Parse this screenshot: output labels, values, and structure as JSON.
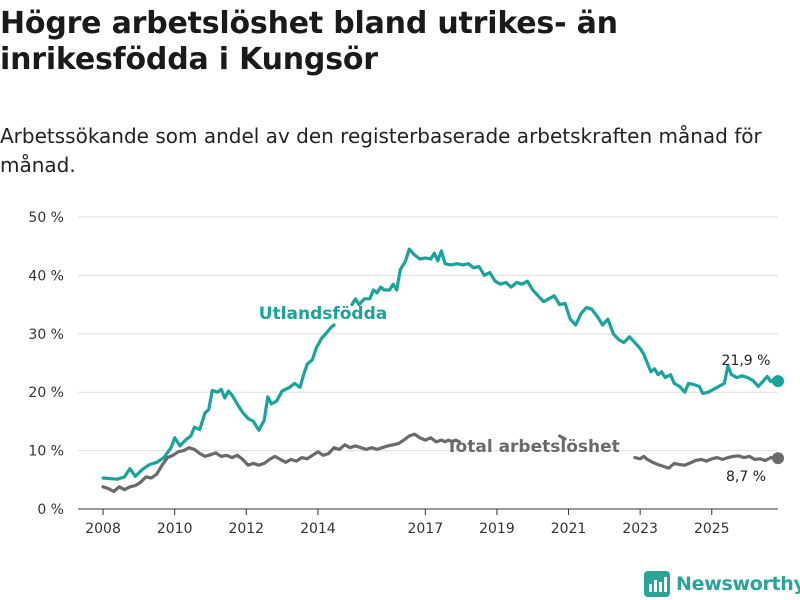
{
  "title": "Högre arbetslöshet bland utrikes- än inrikesfödda i Kungsör",
  "subtitle": "Arbetssökande som andel av den registerbaserade arbetskraften månad för månad.",
  "brand": {
    "name": "Newsworthy",
    "icon": "bar-chart-logo-icon",
    "color": "#2ba399"
  },
  "colors": {
    "foreign": "#1aa39a",
    "total": "#6a6a6a",
    "grid": "#dddddd",
    "axis": "#333333"
  },
  "chart_data": {
    "type": "line",
    "ylim": [
      0,
      50
    ],
    "yticks": [
      0,
      10,
      20,
      30,
      40,
      50
    ],
    "ytick_labels": [
      "0 %",
      "10 %",
      "20 %",
      "30 %",
      "40 %",
      "50 %"
    ],
    "xticks": [
      2008,
      2010,
      2012,
      2014,
      2017,
      2019,
      2021,
      2023,
      2025
    ],
    "xtick_labels": [
      "2008",
      "2010",
      "2012",
      "2014",
      "2017",
      "2019",
      "2021",
      "2023",
      "2025"
    ],
    "xlim": [
      2007.3,
      2026.85
    ],
    "series": [
      {
        "name": "Utlandsfödda",
        "label": "Utlandsfödda",
        "end_label": "21,9 %",
        "segments": [
          [
            [
              2008.0,
              5.3
            ],
            [
              2008.2,
              5.2
            ],
            [
              2008.4,
              5.1
            ],
            [
              2008.6,
              5.5
            ],
            [
              2008.75,
              6.9
            ],
            [
              2008.9,
              5.6
            ],
            [
              2009.1,
              6.8
            ],
            [
              2009.3,
              7.6
            ],
            [
              2009.5,
              8.0
            ],
            [
              2009.7,
              8.8
            ],
            [
              2009.9,
              10.5
            ],
            [
              2010.0,
              12.2
            ],
            [
              2010.15,
              10.8
            ],
            [
              2010.3,
              11.8
            ],
            [
              2010.45,
              12.5
            ],
            [
              2010.55,
              14.0
            ],
            [
              2010.7,
              13.6
            ],
            [
              2010.85,
              16.5
            ],
            [
              2010.95,
              17.0
            ],
            [
              2011.05,
              20.3
            ],
            [
              2011.2,
              20.0
            ],
            [
              2011.3,
              20.5
            ],
            [
              2011.4,
              19.0
            ],
            [
              2011.5,
              20.2
            ],
            [
              2011.6,
              19.5
            ],
            [
              2011.75,
              18.0
            ],
            [
              2011.9,
              16.5
            ],
            [
              2012.05,
              15.5
            ],
            [
              2012.2,
              15.0
            ],
            [
              2012.35,
              13.5
            ],
            [
              2012.5,
              15.2
            ],
            [
              2012.6,
              19.2
            ],
            [
              2012.7,
              18.0
            ],
            [
              2012.85,
              18.5
            ],
            [
              2013.0,
              20.2
            ],
            [
              2013.2,
              20.8
            ],
            [
              2013.35,
              21.5
            ],
            [
              2013.5,
              20.8
            ],
            [
              2013.6,
              23.0
            ],
            [
              2013.7,
              24.8
            ],
            [
              2013.85,
              25.6
            ],
            [
              2013.95,
              27.5
            ],
            [
              2014.1,
              29.2
            ],
            [
              2014.25,
              30.2
            ],
            [
              2014.35,
              31.0
            ],
            [
              2014.45,
              31.5
            ]
          ],
          [
            [
              2014.95,
              35.0
            ],
            [
              2015.05,
              36.0
            ],
            [
              2015.15,
              35.0
            ],
            [
              2015.3,
              36.0
            ],
            [
              2015.45,
              36.0
            ],
            [
              2015.55,
              37.5
            ],
            [
              2015.65,
              37.0
            ],
            [
              2015.75,
              38.0
            ],
            [
              2015.85,
              37.5
            ],
            [
              2016.0,
              37.5
            ],
            [
              2016.1,
              38.5
            ],
            [
              2016.2,
              37.5
            ],
            [
              2016.3,
              41.0
            ],
            [
              2016.45,
              42.5
            ],
            [
              2016.55,
              44.5
            ],
            [
              2016.7,
              43.5
            ],
            [
              2016.85,
              42.8
            ],
            [
              2017.0,
              43.0
            ],
            [
              2017.15,
              42.8
            ],
            [
              2017.25,
              43.8
            ],
            [
              2017.35,
              42.5
            ],
            [
              2017.45,
              44.2
            ],
            [
              2017.55,
              42.0
            ],
            [
              2017.7,
              41.8
            ],
            [
              2017.9,
              42.0
            ],
            [
              2018.05,
              41.8
            ],
            [
              2018.2,
              42.0
            ],
            [
              2018.35,
              41.3
            ],
            [
              2018.5,
              41.5
            ],
            [
              2018.65,
              40.0
            ],
            [
              2018.8,
              40.5
            ],
            [
              2018.95,
              39.0
            ],
            [
              2019.1,
              38.5
            ],
            [
              2019.25,
              38.8
            ],
            [
              2019.4,
              38.0
            ],
            [
              2019.55,
              38.8
            ],
            [
              2019.7,
              38.5
            ],
            [
              2019.85,
              39.0
            ],
            [
              2020.0,
              37.5
            ],
            [
              2020.15,
              36.5
            ],
            [
              2020.3,
              35.5
            ],
            [
              2020.45,
              36.0
            ],
            [
              2020.6,
              36.5
            ],
            [
              2020.75,
              35.0
            ],
            [
              2020.9,
              35.2
            ],
            [
              2021.05,
              32.5
            ],
            [
              2021.2,
              31.5
            ],
            [
              2021.35,
              33.5
            ],
            [
              2021.5,
              34.5
            ],
            [
              2021.65,
              34.2
            ],
            [
              2021.8,
              33.0
            ],
            [
              2021.95,
              31.5
            ],
            [
              2022.1,
              32.5
            ],
            [
              2022.25,
              30.0
            ],
            [
              2022.4,
              29.0
            ],
            [
              2022.55,
              28.5
            ],
            [
              2022.7,
              29.5
            ],
            [
              2022.85,
              28.5
            ],
            [
              2023.0,
              27.5
            ],
            [
              2023.1,
              26.5
            ],
            [
              2023.2,
              25.0
            ],
            [
              2023.3,
              23.5
            ],
            [
              2023.4,
              24.0
            ],
            [
              2023.5,
              23.0
            ],
            [
              2023.6,
              23.5
            ],
            [
              2023.7,
              22.5
            ],
            [
              2023.85,
              23.0
            ],
            [
              2023.95,
              21.5
            ],
            [
              2024.1,
              21.0
            ],
            [
              2024.25,
              20.0
            ],
            [
              2024.35,
              21.5
            ],
            [
              2024.5,
              21.3
            ],
            [
              2024.65,
              21.0
            ],
            [
              2024.75,
              19.8
            ],
            [
              2024.9,
              20.0
            ],
            [
              2025.05,
              20.5
            ],
            [
              2025.2,
              21.0
            ],
            [
              2025.35,
              21.5
            ],
            [
              2025.45,
              24.5
            ],
            [
              2025.55,
              23.0
            ],
            [
              2025.7,
              22.5
            ],
            [
              2025.85,
              22.8
            ],
            [
              2026.0,
              22.5
            ],
            [
              2026.15,
              22.0
            ],
            [
              2026.3,
              21.0
            ],
            [
              2026.45,
              22.0
            ],
            [
              2026.55,
              22.7
            ],
            [
              2026.65,
              21.8
            ],
            [
              2026.75,
              22.3
            ],
            [
              2026.85,
              21.9
            ]
          ]
        ]
      },
      {
        "name": "Total arbetslöshet",
        "label": "Total arbetslöshet",
        "end_label": "8,7 %",
        "segments": [
          [
            [
              2008.0,
              3.8
            ],
            [
              2008.15,
              3.5
            ],
            [
              2008.3,
              3.0
            ],
            [
              2008.45,
              3.8
            ],
            [
              2008.6,
              3.3
            ],
            [
              2008.75,
              3.8
            ],
            [
              2008.9,
              4.0
            ],
            [
              2009.05,
              4.6
            ],
            [
              2009.2,
              5.5
            ],
            [
              2009.35,
              5.3
            ],
            [
              2009.5,
              6.0
            ],
            [
              2009.65,
              7.5
            ],
            [
              2009.8,
              8.8
            ],
            [
              2009.95,
              9.2
            ],
            [
              2010.1,
              9.8
            ],
            [
              2010.25,
              10.0
            ],
            [
              2010.4,
              10.5
            ],
            [
              2010.55,
              10.2
            ],
            [
              2010.7,
              9.5
            ],
            [
              2010.85,
              9.0
            ],
            [
              2011.0,
              9.3
            ],
            [
              2011.15,
              9.6
            ],
            [
              2011.3,
              9.0
            ],
            [
              2011.45,
              9.2
            ],
            [
              2011.6,
              8.8
            ],
            [
              2011.75,
              9.2
            ],
            [
              2011.9,
              8.5
            ],
            [
              2012.05,
              7.5
            ],
            [
              2012.2,
              7.8
            ],
            [
              2012.35,
              7.5
            ],
            [
              2012.5,
              7.8
            ],
            [
              2012.65,
              8.5
            ],
            [
              2012.8,
              9.0
            ],
            [
              2012.95,
              8.5
            ],
            [
              2013.1,
              8.0
            ],
            [
              2013.25,
              8.5
            ],
            [
              2013.4,
              8.2
            ],
            [
              2013.55,
              8.8
            ],
            [
              2013.7,
              8.6
            ],
            [
              2013.85,
              9.2
            ],
            [
              2014.0,
              9.8
            ],
            [
              2014.15,
              9.2
            ],
            [
              2014.3,
              9.5
            ],
            [
              2014.45,
              10.5
            ],
            [
              2014.6,
              10.2
            ],
            [
              2014.75,
              11.0
            ],
            [
              2014.9,
              10.5
            ],
            [
              2015.05,
              10.8
            ],
            [
              2015.2,
              10.5
            ],
            [
              2015.35,
              10.2
            ],
            [
              2015.5,
              10.5
            ],
            [
              2015.65,
              10.2
            ],
            [
              2015.8,
              10.5
            ],
            [
              2015.95,
              10.8
            ],
            [
              2016.1,
              11.0
            ],
            [
              2016.25,
              11.2
            ],
            [
              2016.4,
              11.8
            ],
            [
              2016.55,
              12.5
            ],
            [
              2016.7,
              12.8
            ],
            [
              2016.85,
              12.2
            ],
            [
              2017.0,
              11.8
            ],
            [
              2017.15,
              12.2
            ],
            [
              2017.3,
              11.5
            ],
            [
              2017.45,
              11.8
            ],
            [
              2017.55,
              11.5
            ],
            [
              2017.65,
              11.8
            ],
            [
              2017.75,
              11.5
            ],
            [
              2017.85,
              11.8
            ],
            [
              2017.95,
              11.5
            ]
          ],
          [
            [
              2020.75,
              12.5
            ],
            [
              2020.9,
              12.0
            ]
          ],
          [
            [
              2022.85,
              8.8
            ],
            [
              2023.0,
              8.6
            ],
            [
              2023.1,
              9.0
            ],
            [
              2023.2,
              8.5
            ],
            [
              2023.35,
              8.0
            ],
            [
              2023.5,
              7.6
            ],
            [
              2023.65,
              7.3
            ],
            [
              2023.8,
              7.0
            ],
            [
              2023.95,
              7.8
            ],
            [
              2024.1,
              7.6
            ],
            [
              2024.25,
              7.5
            ],
            [
              2024.4,
              7.9
            ],
            [
              2024.55,
              8.3
            ],
            [
              2024.7,
              8.5
            ],
            [
              2024.85,
              8.2
            ],
            [
              2025.0,
              8.6
            ],
            [
              2025.15,
              8.8
            ],
            [
              2025.3,
              8.5
            ],
            [
              2025.45,
              8.8
            ],
            [
              2025.6,
              9.0
            ],
            [
              2025.75,
              9.1
            ],
            [
              2025.9,
              8.8
            ],
            [
              2026.05,
              9.0
            ],
            [
              2026.2,
              8.5
            ],
            [
              2026.35,
              8.6
            ],
            [
              2026.5,
              8.3
            ],
            [
              2026.65,
              8.8
            ],
            [
              2026.85,
              8.7
            ]
          ]
        ]
      }
    ]
  }
}
